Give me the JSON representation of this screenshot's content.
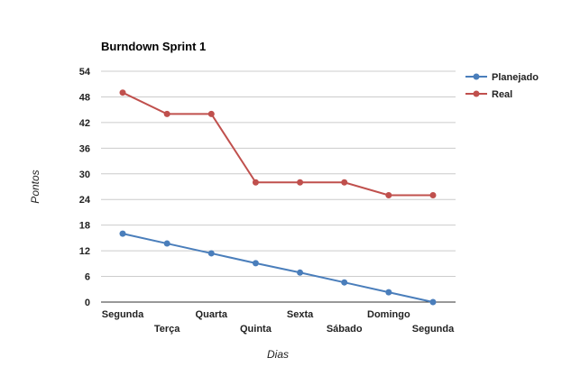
{
  "chart_data": {
    "type": "line",
    "title": "Burndown Sprint 1",
    "xlabel": "Dias",
    "ylabel": "Pontos",
    "categories": [
      "Segunda",
      "Terça",
      "Quarta",
      "Quinta",
      "Sexta",
      "Sábado",
      "Domingo",
      "Segunda"
    ],
    "ylim": [
      0,
      54
    ],
    "yticks": [
      0,
      6,
      12,
      18,
      24,
      30,
      36,
      42,
      48,
      54
    ],
    "grid": true,
    "legend_position": "right",
    "series": [
      {
        "name": "Planejado",
        "color": "#4a7ebb",
        "values": [
          16,
          13.7,
          11.4,
          9.1,
          6.9,
          4.6,
          2.3,
          0
        ]
      },
      {
        "name": "Real",
        "color": "#c0504d",
        "values": [
          49,
          44,
          44,
          28,
          28,
          28,
          25,
          25
        ]
      }
    ]
  }
}
